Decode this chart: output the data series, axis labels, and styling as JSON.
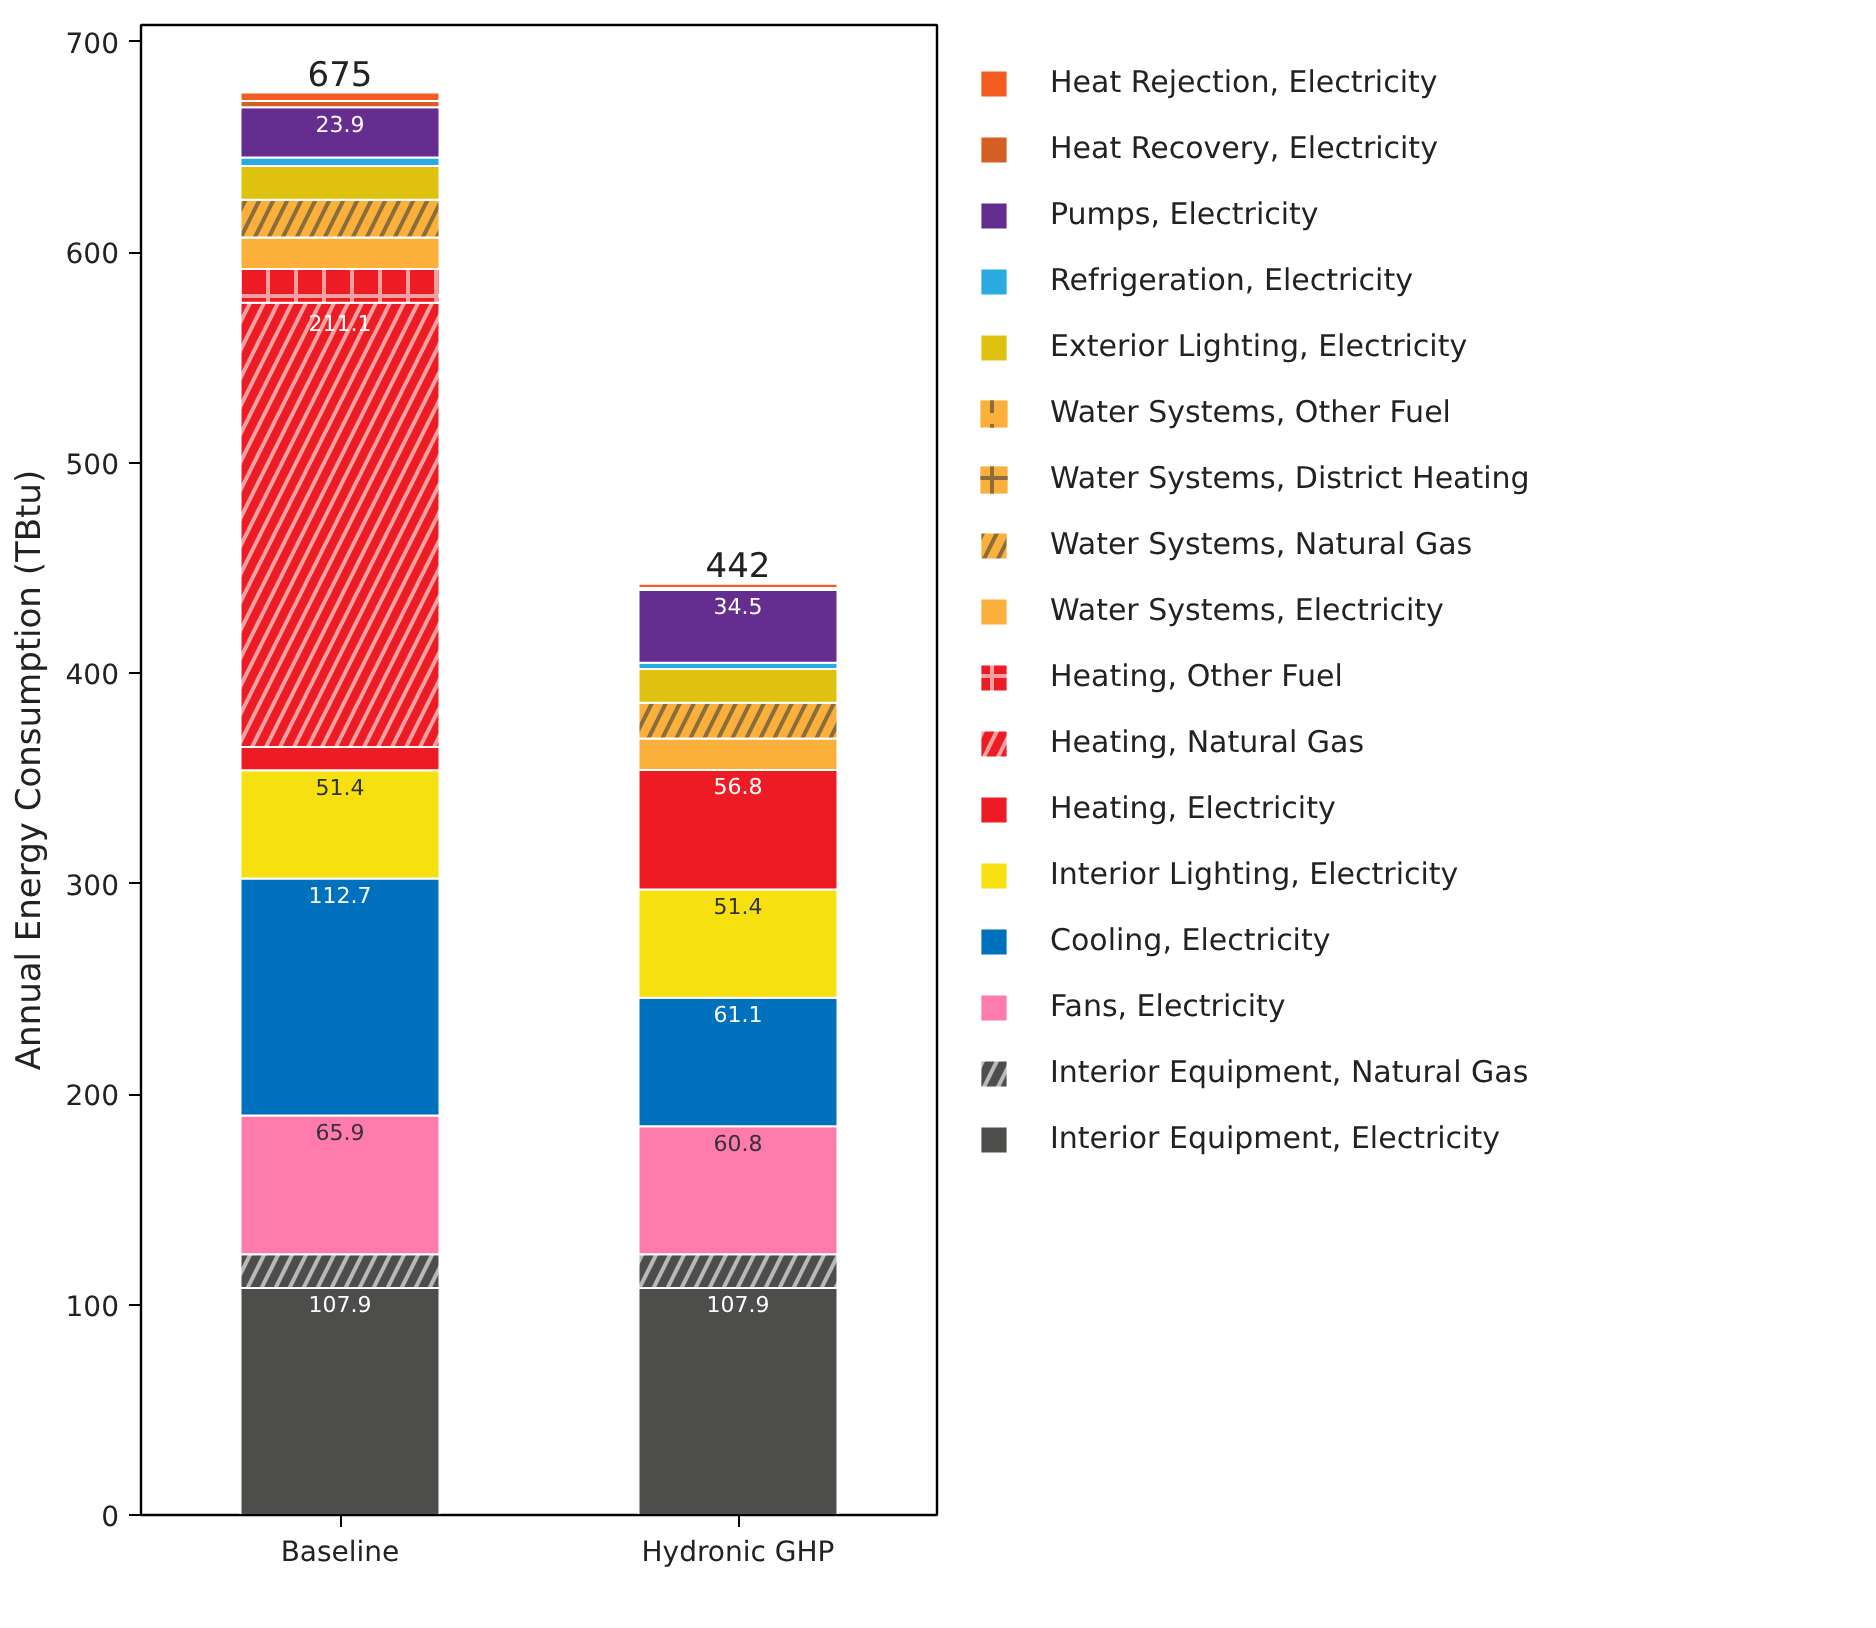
{
  "chart_data": {
    "type": "bar",
    "stacked": true,
    "ylabel": "Annual Energy Consumption (TBtu)",
    "categories": [
      "Baseline",
      "Hydronic GHP"
    ],
    "ylim": [
      0,
      708
    ],
    "yticks": [
      0,
      100,
      200,
      300,
      400,
      500,
      600,
      700
    ],
    "grid": false,
    "legend": "right",
    "totals": [
      "675",
      "442"
    ],
    "series": [
      {
        "name": "Interior Equipment, Electricity",
        "color": "#4d4e4c",
        "values": [
          107.9,
          107.9
        ],
        "value_labels": [
          "107.9",
          "107.9"
        ]
      },
      {
        "name": "Interior Equipment, Natural Gas",
        "color": "#4d4e4c",
        "values": [
          16,
          16
        ]
      },
      {
        "name": "Fans, Electricity",
        "color": "#ff7bac",
        "values": [
          65.9,
          60.8
        ],
        "value_labels": [
          "65.9",
          "60.8"
        ]
      },
      {
        "name": "Cooling, Electricity",
        "color": "#0071bc",
        "values": [
          112.7,
          61.1
        ],
        "value_labels": [
          "112.7",
          "61.1"
        ]
      },
      {
        "name": "Interior Lighting, Electricity",
        "color": "#f7e00f",
        "values": [
          51.4,
          51.4
        ],
        "value_labels": [
          "51.4",
          "51.4"
        ]
      },
      {
        "name": "Heating, Electricity",
        "color": "#ed1c24",
        "values": [
          11,
          56.8
        ],
        "value_labels": [
          null,
          "56.8"
        ]
      },
      {
        "name": "Heating, Natural Gas",
        "color": "#ed1c24",
        "values": [
          211.1,
          0
        ],
        "value_labels": [
          "211.1",
          null
        ]
      },
      {
        "name": "Heating, Other Fuel",
        "color": "#ed1c24",
        "values": [
          16,
          0
        ]
      },
      {
        "name": "Water Systems, Electricity",
        "color": "#fbb03b",
        "values": [
          15,
          15
        ]
      },
      {
        "name": "Water Systems, Natural Gas",
        "color": "#fbb03b",
        "values": [
          18,
          17
        ]
      },
      {
        "name": "Water Systems, District Heating",
        "color": "#fbb03b",
        "values": [
          0,
          0
        ]
      },
      {
        "name": "Water Systems, Other Fuel",
        "color": "#fbb03b",
        "values": [
          0,
          0
        ]
      },
      {
        "name": "Exterior Lighting, Electricity",
        "color": "#dfc10f",
        "values": [
          16,
          16
        ]
      },
      {
        "name": "Refrigeration, Electricity",
        "color": "#29abe2",
        "values": [
          4,
          3
        ]
      },
      {
        "name": "Pumps, Electricity",
        "color": "#662d91",
        "values": [
          23.9,
          34.5
        ],
        "value_labels": [
          "23.9",
          "34.5"
        ]
      },
      {
        "name": "Heat Recovery, Electricity",
        "color": "#d35f22",
        "values": [
          3,
          1
        ]
      },
      {
        "name": "Heat Rejection, Electricity",
        "color": "#f45d22",
        "values": [
          4,
          2
        ]
      }
    ]
  }
}
